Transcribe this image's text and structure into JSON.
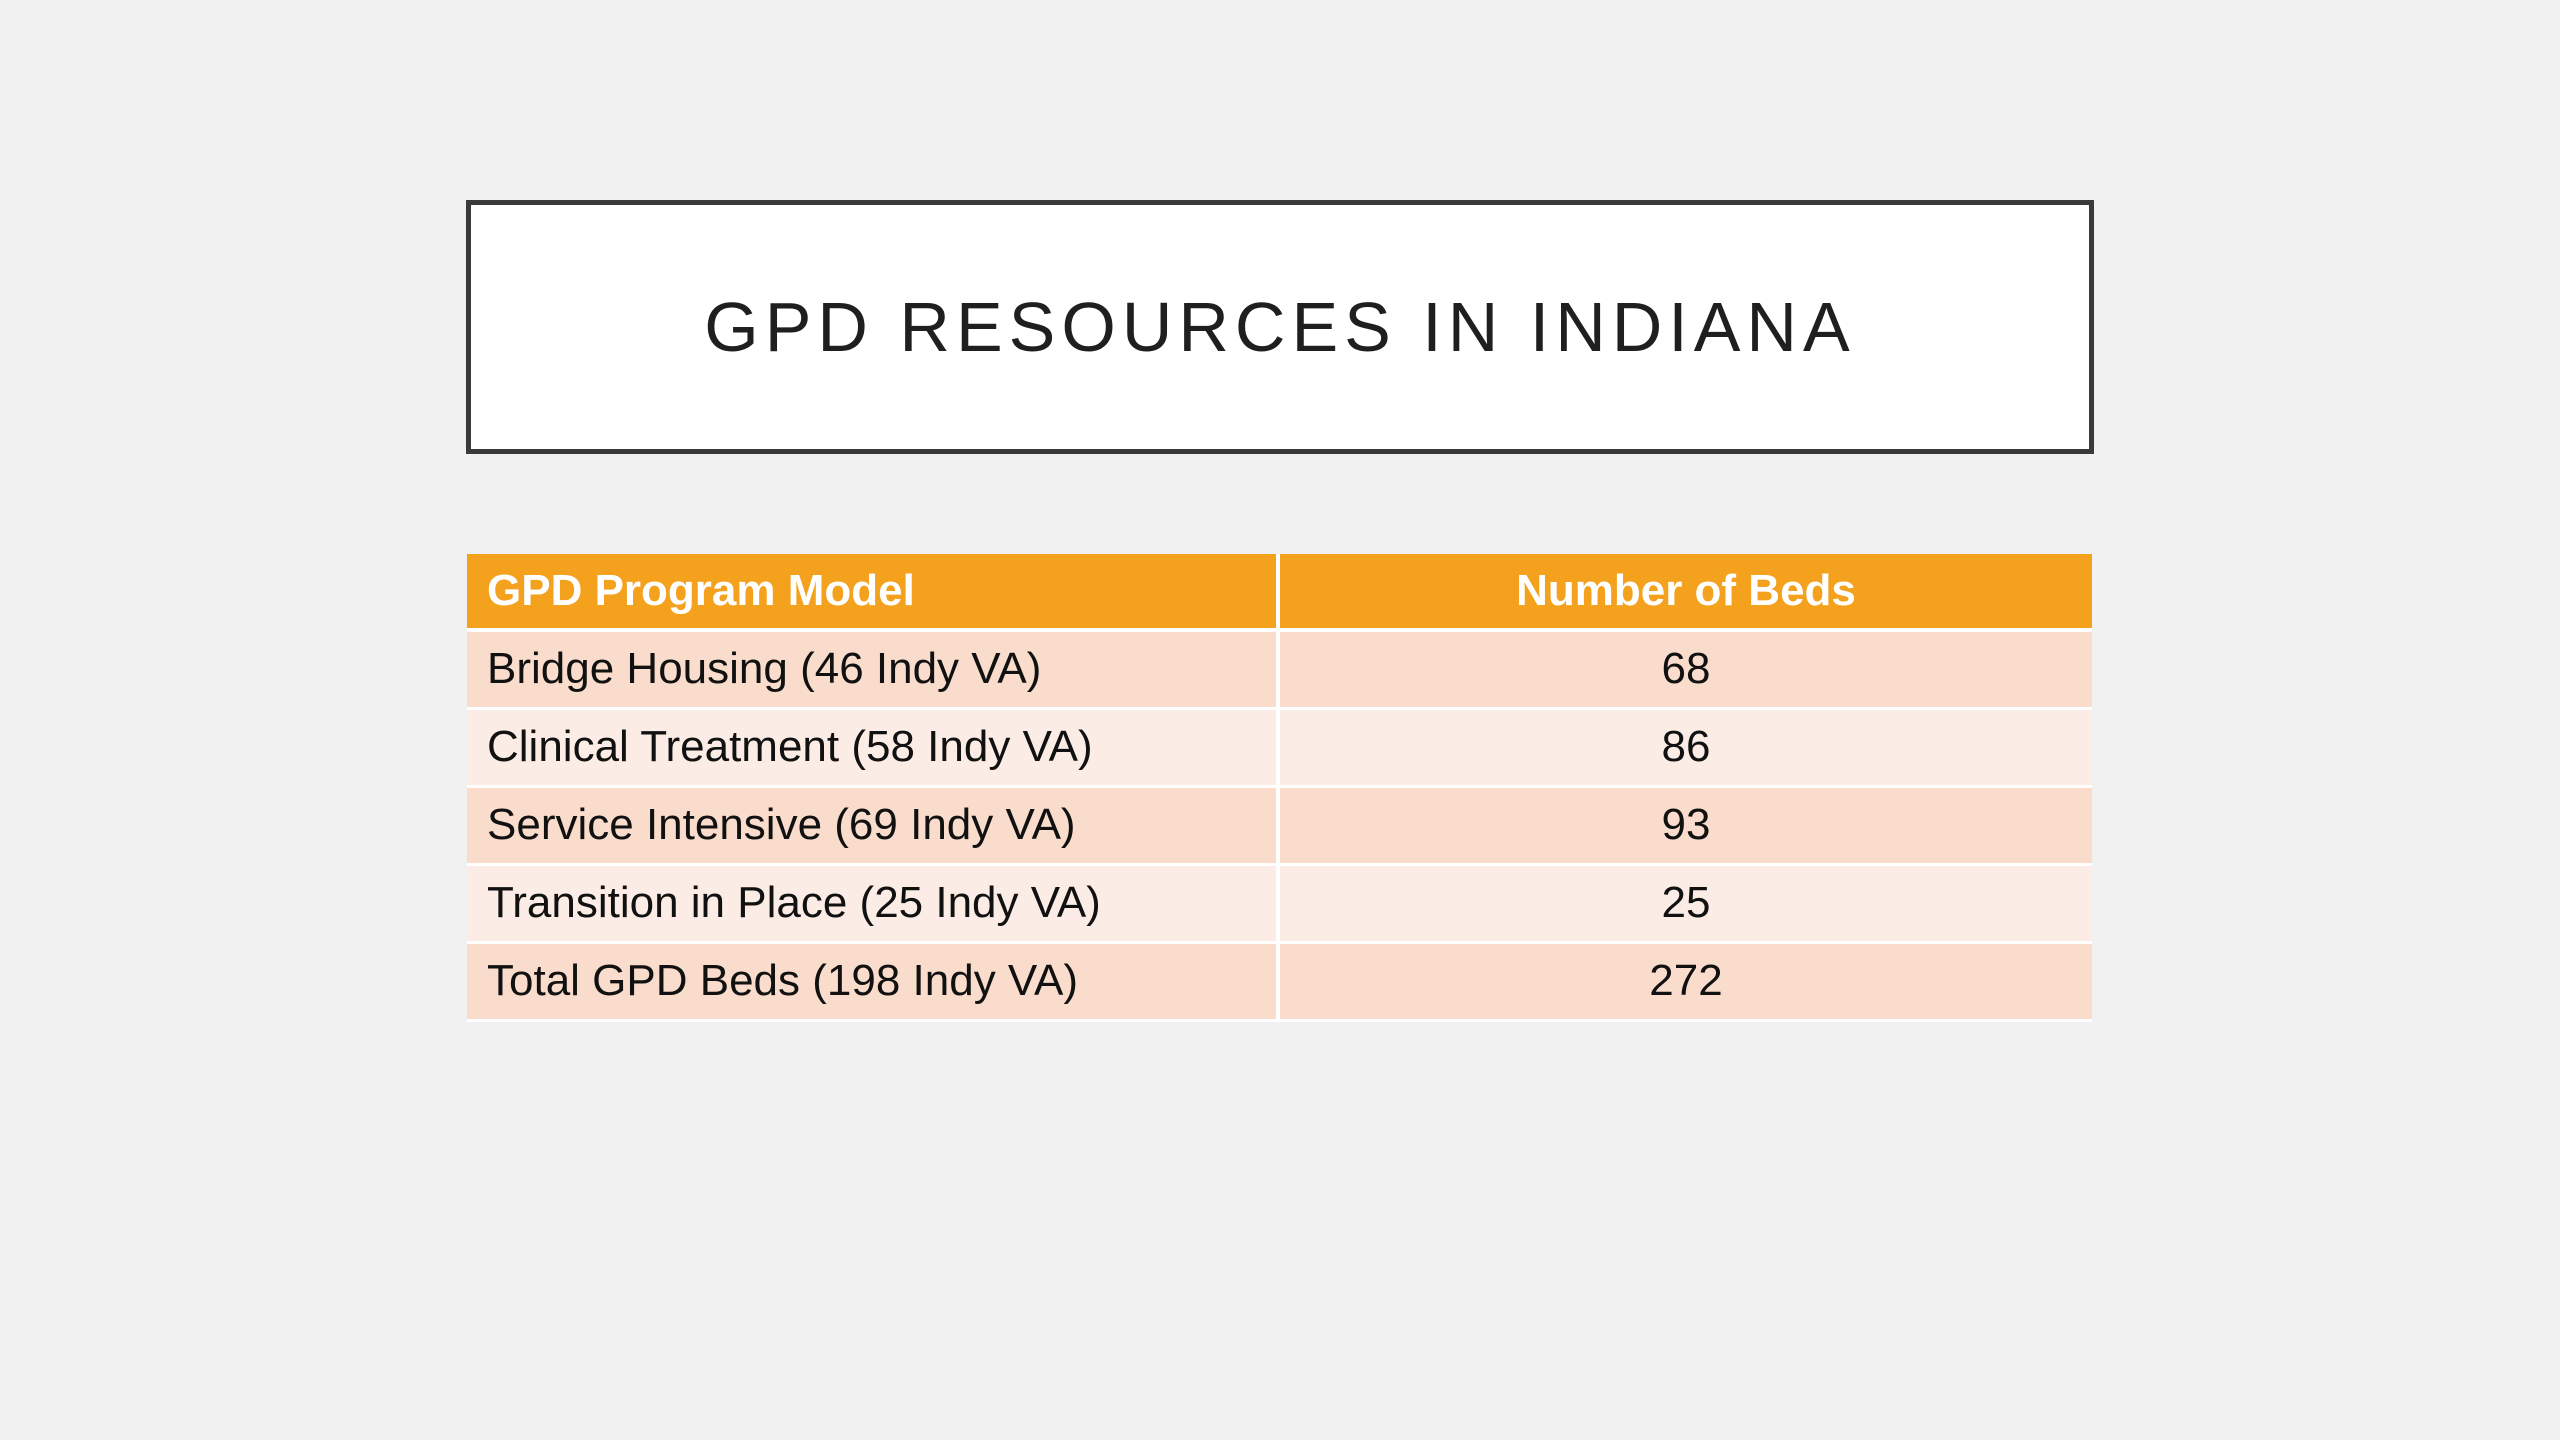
{
  "slide": {
    "title": "GPD RESOURCES IN INDIANA"
  },
  "table": {
    "headers": [
      "GPD Program Model",
      "Number of Beds"
    ],
    "rows": [
      {
        "model": "Bridge Housing (46 Indy VA)",
        "beds": "68"
      },
      {
        "model": "Clinical Treatment (58 Indy VA)",
        "beds": "86"
      },
      {
        "model": "Service Intensive (69 Indy VA)",
        "beds": "93"
      },
      {
        "model": "Transition in Place (25 Indy VA)",
        "beds": "25"
      },
      {
        "model": "Total GPD Beds (198 Indy VA)",
        "beds": "272"
      }
    ]
  },
  "colors": {
    "background": "#f1f1f1",
    "title_border": "#3a3a3a",
    "header_fill": "#f4a11d",
    "row_dark": "#f9dccb",
    "row_light": "#fbede5"
  }
}
